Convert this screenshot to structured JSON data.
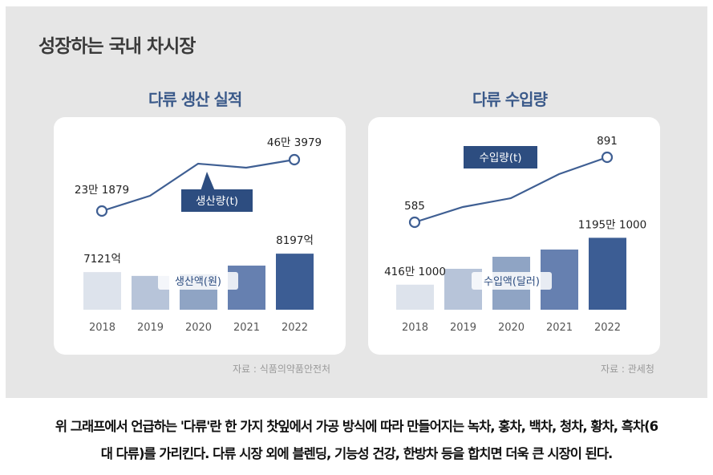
{
  "main_title": "성장하는 국내 차시장",
  "caption": {
    "line1": "위 그래프에서 언급하는 '다류'란 한 가지 찻잎에서 가공 방식에 따라 만들어지는 녹차, 홍차, 백차, 청차, 황차, 흑차(6",
    "line2": "대 다류)를 가리킨다. 다류 시장 외에 블렌딩, 기능성 건강, 한방차 등을 합치면 더욱 큰 시장이 된다."
  },
  "colors": {
    "panel_bg": "#e6e6e6",
    "line": "#3f5f93",
    "label_box": "#2d4d80",
    "title": "#3b5a8a",
    "bars": [
      "#dde3ec",
      "#b7c4d9",
      "#8fa4c4",
      "#6680b0",
      "#3c5d94"
    ]
  },
  "chart_data": [
    {
      "type": "bar+line",
      "title": "다류 생산 실적",
      "source": "자료 : 식품의약품안전처",
      "categories": [
        "2018",
        "2019",
        "2020",
        "2021",
        "2022"
      ],
      "series": [
        {
          "name": "생산액(원)",
          "type": "bar",
          "unit": "억",
          "values": [
            7121,
            6900,
            7000,
            7500,
            8197
          ],
          "data_labels": [
            "7121억",
            "",
            "",
            "",
            "8197억"
          ]
        },
        {
          "name": "생산량(t)",
          "type": "line",
          "values": [
            231879,
            290000,
            420000,
            410000,
            463979
          ],
          "data_labels": [
            "23만 1879",
            "",
            "",
            "",
            "46만 3979"
          ]
        }
      ],
      "legend": "inline labels"
    },
    {
      "type": "bar+line",
      "title": "다류 수입량",
      "source": "자료 : 관세청",
      "categories": [
        "2018",
        "2019",
        "2020",
        "2021",
        "2022"
      ],
      "series": [
        {
          "name": "수입액(달러)",
          "type": "bar",
          "values": [
            4161000,
            6800000,
            8800000,
            10000000,
            11951000
          ],
          "data_labels": [
            "416만 1000",
            "",
            "",
            "",
            "1195만 1000"
          ]
        },
        {
          "name": "수입량(t)",
          "type": "line",
          "values": [
            585,
            670,
            720,
            810,
            891
          ],
          "data_labels": [
            "585",
            "",
            "",
            "",
            "891"
          ]
        }
      ],
      "legend": "inline labels"
    }
  ]
}
